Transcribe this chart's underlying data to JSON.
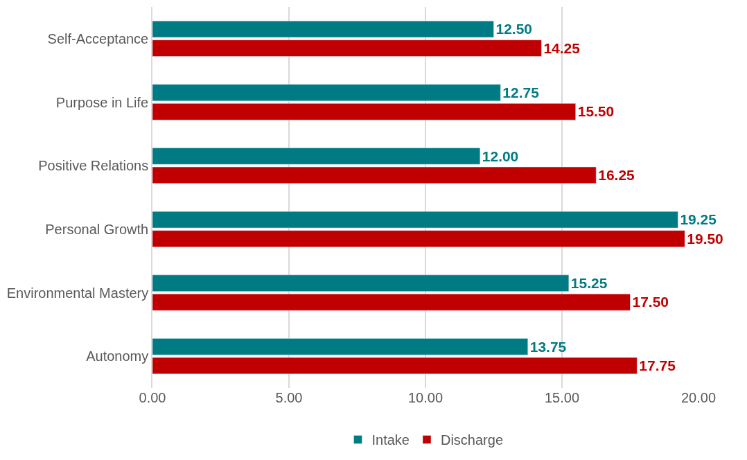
{
  "chart_data": {
    "type": "bar",
    "orientation": "horizontal",
    "categories": [
      "Self-Acceptance",
      "Purpose in Life",
      "Positive Relations",
      "Personal Growth",
      "Environmental Mastery",
      "Autonomy"
    ],
    "series": [
      {
        "name": "Intake",
        "color": "#007b83",
        "values": [
          12.5,
          12.75,
          12.0,
          19.25,
          15.25,
          13.75
        ],
        "value_labels": [
          "12.50",
          "12.75",
          "12.00",
          "19.25",
          "15.25",
          "13.75"
        ]
      },
      {
        "name": "Discharge",
        "color": "#c00000",
        "values": [
          14.25,
          15.5,
          16.25,
          19.5,
          17.5,
          17.75
        ],
        "value_labels": [
          "14.25",
          "15.50",
          "16.25",
          "19.50",
          "17.50",
          "17.75"
        ]
      }
    ],
    "xlim": [
      0,
      20
    ],
    "xticks": [
      {
        "value": 0,
        "label": "0.00"
      },
      {
        "value": 5,
        "label": "5.00"
      },
      {
        "value": 10,
        "label": "10.00"
      },
      {
        "value": 15,
        "label": "15.00"
      },
      {
        "value": 20,
        "label": "20.00"
      }
    ],
    "grid": "x",
    "legend": "bottom"
  }
}
